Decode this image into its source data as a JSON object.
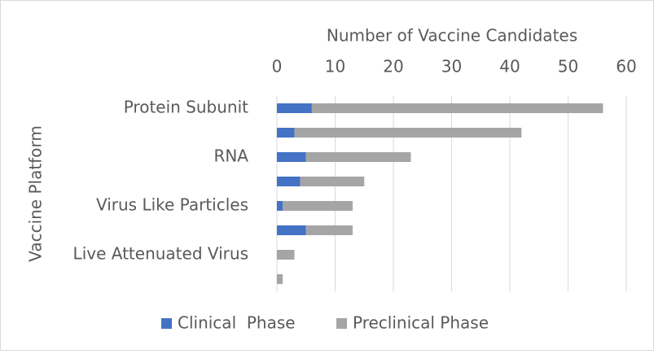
{
  "chart_data": {
    "type": "stacked-bar-horizontal",
    "x_axis_label": "Number of Vaccine Candidates",
    "y_axis_label": "Vaccine Platform",
    "categories": [
      "Protein Subunit",
      null,
      "RNA",
      null,
      "Virus Like Particles",
      null,
      "Live Attenuated Virus",
      null
    ],
    "series": [
      {
        "name": "Clinical  Phase",
        "color": "#4472c4",
        "values": [
          6,
          3,
          5,
          4,
          1,
          5,
          0,
          0
        ]
      },
      {
        "name": "Preclinical Phase",
        "color": "#a5a5a5",
        "values": [
          50,
          39,
          18,
          11,
          12,
          8,
          3,
          1
        ]
      }
    ],
    "xlim": [
      0,
      60
    ],
    "xticks": [
      0,
      10,
      20,
      30,
      40,
      50,
      60
    ],
    "grid": true,
    "legend": "bottom"
  }
}
